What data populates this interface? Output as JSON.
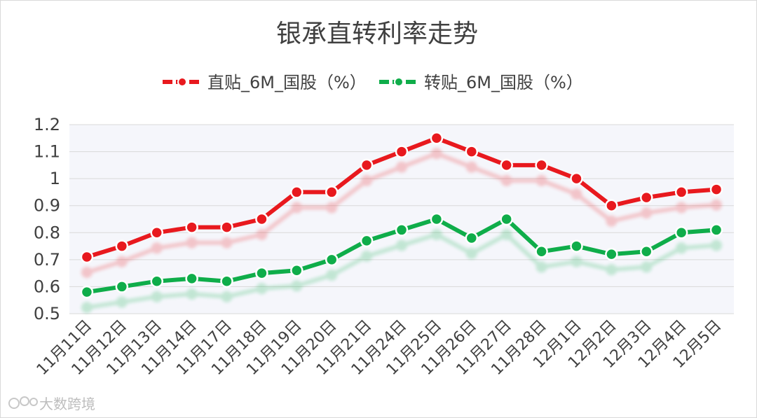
{
  "chart_data": {
    "type": "line",
    "title": "银承直转利率走势",
    "categories": [
      "11月11日",
      "11月12日",
      "11月13日",
      "11月14日",
      "11月17日",
      "11月18日",
      "11月19日",
      "11月20日",
      "11月21日",
      "11月24日",
      "11月25日",
      "11月26日",
      "11月27日",
      "11月28日",
      "12月1日",
      "12月2日",
      "12月3日",
      "12月4日",
      "12月5日"
    ],
    "series": [
      {
        "name": "直贴_6M_国股（%）",
        "color": "#e8191e",
        "values": [
          0.71,
          0.75,
          0.8,
          0.82,
          0.82,
          0.85,
          0.95,
          0.95,
          1.05,
          1.1,
          1.15,
          1.1,
          1.05,
          1.05,
          1.0,
          0.9,
          0.93,
          0.95,
          0.96
        ]
      },
      {
        "name": "转贴_6M_国股（%）",
        "color": "#0fad4a",
        "values": [
          0.58,
          0.6,
          0.62,
          0.63,
          0.62,
          0.65,
          0.66,
          0.7,
          0.77,
          0.81,
          0.85,
          0.78,
          0.85,
          0.73,
          0.75,
          0.72,
          0.73,
          0.8,
          0.81
        ]
      }
    ],
    "ylim": [
      0.5,
      1.2
    ],
    "yticks": [
      "0.5",
      "0.6",
      "0.7",
      "0.8",
      "0.9",
      "1",
      "1.1",
      "1.2"
    ],
    "grid": true,
    "legend_position": "top"
  },
  "watermark": "大数跨境"
}
